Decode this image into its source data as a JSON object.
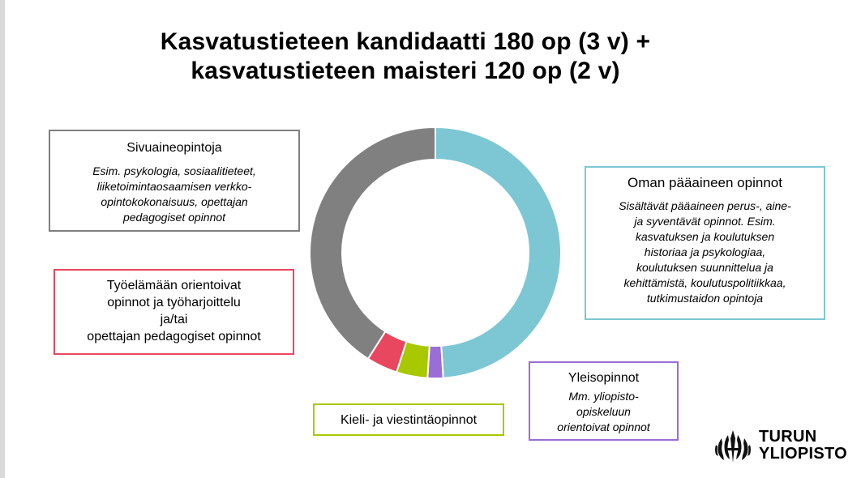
{
  "title": {
    "line1": "Kasvatustieteen kandidaatti 180 op (3 v) +",
    "line2": "kasvatustieteen maisteri 120 op (2 v)"
  },
  "boxes": {
    "sivuaine": {
      "heading": "Sivuaineopintoja",
      "body": [
        "Esim. psykologia, sosiaalitieteet,",
        "liiketoimintaosaamisen verkko-",
        "opintokokonaisuus, opettajan",
        "pedagogiset opinnot"
      ],
      "color": "#7f7f7f"
    },
    "oma": {
      "heading": "Oman pääaineen opinnot",
      "body": [
        "Sisältävät pääaineen perus-, aine-",
        "ja syventävät opinnot. Esim.",
        "kasvatuksen ja koulutuksen",
        "historiaa ja psykologiaa,",
        "koulutuksen suunnittelua ja",
        "kehittämistä, koulutuspolitiikkaa,",
        "tutkimustaidon opintoja"
      ],
      "color": "#7cc7d3"
    },
    "tyo": {
      "heading": [
        "Työelämään orientoivat",
        "opinnot ja työharjoittelu",
        "ja/tai",
        "opettajan pedagogiset opinnot"
      ],
      "color": "#e8475f"
    },
    "yleis": {
      "heading": "Yleisopinnot",
      "body": [
        "Mm. yliopisto-",
        "opiskeluun",
        "orientoivat opinnot"
      ],
      "color": "#9b6dd6"
    },
    "kieli": {
      "heading": "Kieli- ja viestintäopinnot",
      "color": "#a8c800"
    }
  },
  "donut": {
    "segments": [
      {
        "key": "oma",
        "value": 49,
        "color": "#7cc7d3"
      },
      {
        "key": "yleis",
        "value": 2,
        "color": "#9b6dd6"
      },
      {
        "key": "kieli",
        "value": 4,
        "color": "#a8c800"
      },
      {
        "key": "tyo",
        "value": 4,
        "color": "#e8475f"
      },
      {
        "key": "sivu",
        "value": 41,
        "color": "#808080"
      }
    ],
    "gap_color": "#ffffff"
  },
  "logo": {
    "line1": "TURUN",
    "line2": "YLIOPISTO"
  }
}
